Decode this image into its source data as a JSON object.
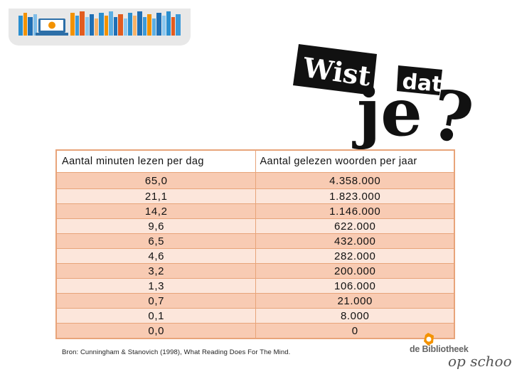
{
  "colors": {
    "table_border": "#e8a47a",
    "row_dark": "#f8cbb3",
    "row_light": "#fce6db",
    "library_orange": "#f39200"
  },
  "header": {
    "icon": "bookshelf-laptop-banner"
  },
  "logo": {
    "word_wist": "Wist",
    "word_je": "je",
    "word_dat": "dat",
    "question": "?"
  },
  "table": {
    "headers": [
      "Aantal minuten lezen per dag",
      "Aantal gelezen woorden per jaar"
    ],
    "rows": [
      [
        "65,0",
        "4.358.000"
      ],
      [
        "21,1",
        "1.823.000"
      ],
      [
        "14,2",
        "1.146.000"
      ],
      [
        "9,6",
        "622.000"
      ],
      [
        "6,5",
        "432.000"
      ],
      [
        "4,6",
        "282.000"
      ],
      [
        "3,2",
        "200.000"
      ],
      [
        "1,3",
        "106.000"
      ],
      [
        "0,7",
        "21.000"
      ],
      [
        "0,1",
        "8.000"
      ],
      [
        "0,0",
        "0"
      ]
    ]
  },
  "source": "Bron: Cunningham & Stanovich (1998), What Reading Does For The Mind.",
  "library": {
    "line1": "de Bibliotheek",
    "line2": "op school"
  }
}
